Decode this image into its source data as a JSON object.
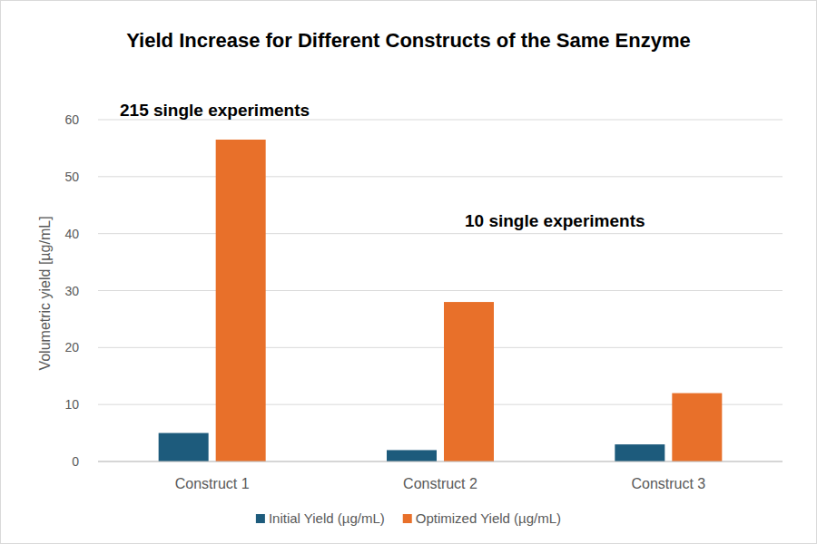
{
  "chart_data": {
    "type": "bar",
    "title": "Yield Increase for Different Constructs of the Same Enzyme",
    "y_label": "Volumetric yield [µg/mL]",
    "annotations": [
      "215 single experiments",
      "10 single experiments"
    ],
    "categories": [
      "Construct 1",
      "Construct 2",
      "Construct 3"
    ],
    "series": [
      {
        "name": "Initial Yield (µg/mL)",
        "color": "#1d5b7c",
        "values": [
          5,
          2,
          3
        ]
      },
      {
        "name": "Optimized Yield (µg/mL)",
        "color": "#e8702a",
        "values": [
          56.5,
          28,
          12
        ]
      }
    ],
    "ylim": [
      0,
      60
    ],
    "yticks": [
      0,
      10,
      20,
      30,
      40,
      50,
      60
    ],
    "grid": true,
    "legend": "bottom"
  }
}
